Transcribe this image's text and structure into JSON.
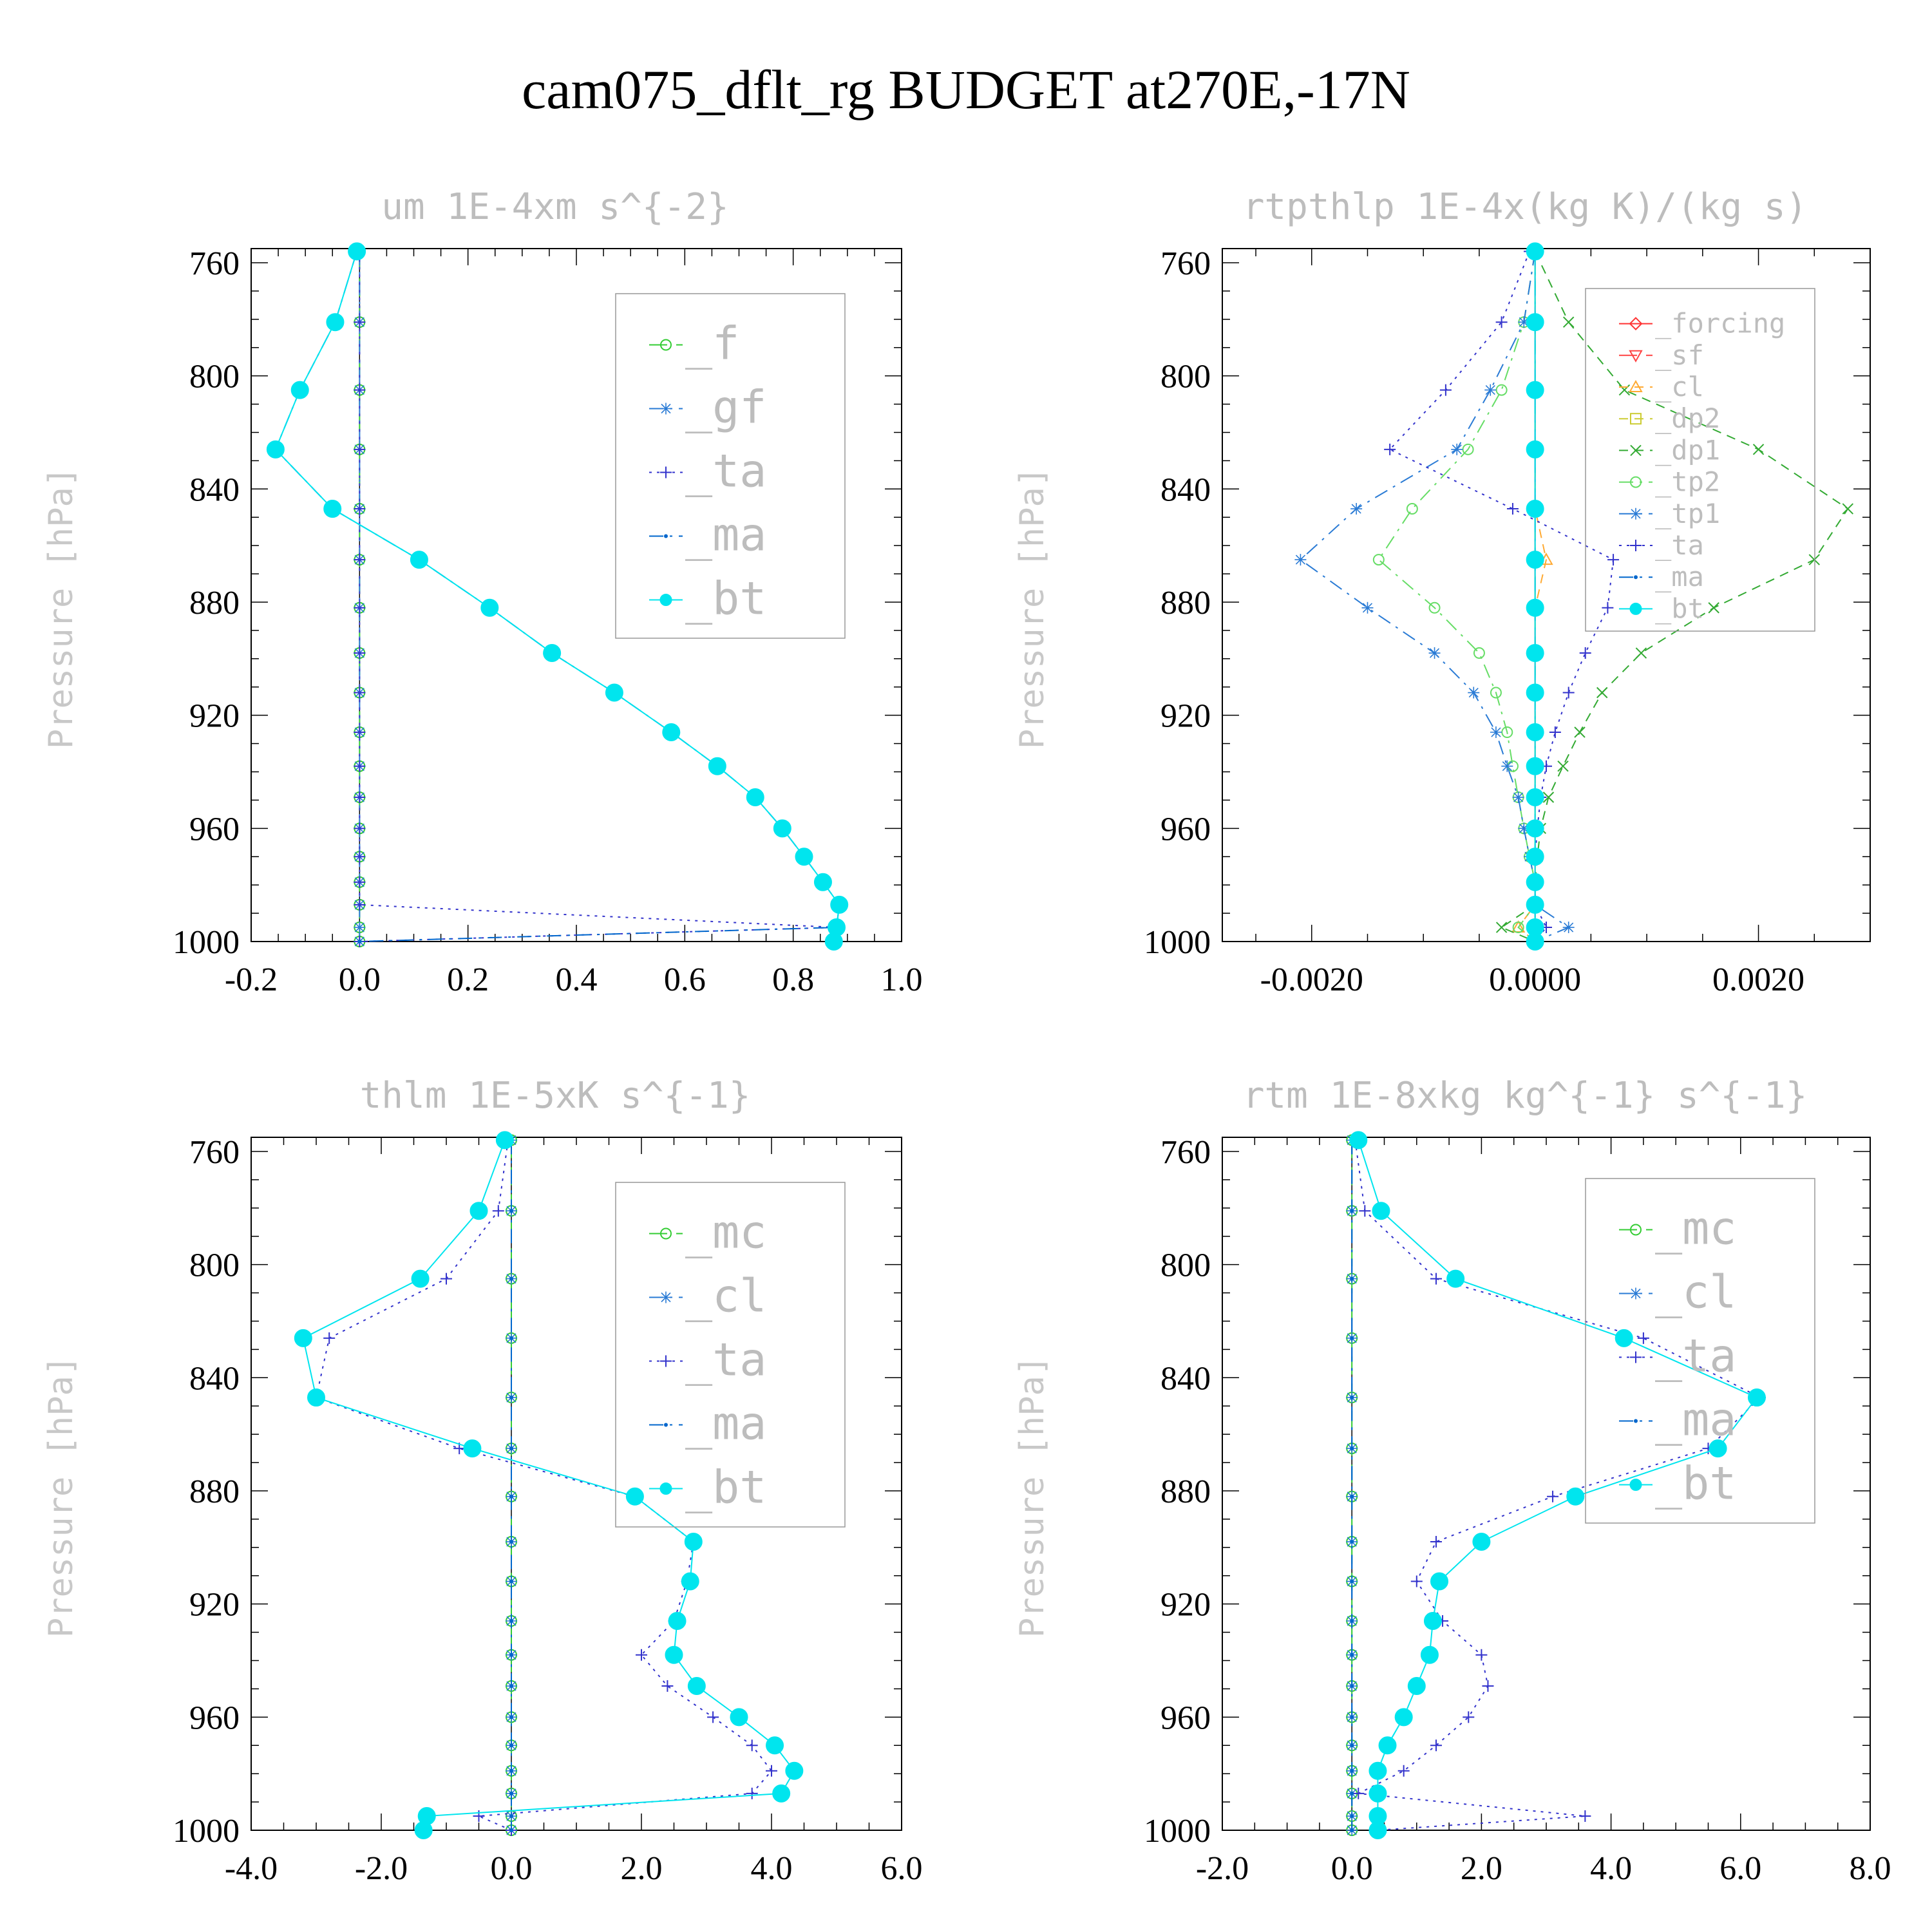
{
  "figure": {
    "title": "cam075_dflt_rg  BUDGET at270E,-17N"
  },
  "colors": {
    "f": "#33cc33",
    "gf": "#2a7bd5",
    "ta": "#3333cc",
    "ma": "#0066cc",
    "bt": "#00e5ee",
    "mc": "#33cc33",
    "cl": "#2a7bd5",
    "forcing": "#ff3333",
    "sf": "#ff4444",
    "cl_rt": "#ffaa33",
    "dp2": "#cccc33",
    "dp1": "#33aa33",
    "tp2": "#66dd66",
    "tp1": "#2a7bd5"
  },
  "chart_data": [
    {
      "type": "line",
      "title": "um   1E-4xm s^{-2}",
      "ylabel": "Pressure [hPa]",
      "ylim": [
        1000,
        755
      ],
      "y_ticks": [
        760,
        800,
        840,
        880,
        920,
        960,
        1000
      ],
      "xlim": [
        -0.2,
        1.0
      ],
      "x_ticks": [
        -0.2,
        0.0,
        0.2,
        0.4,
        0.6,
        0.8,
        1.0
      ],
      "x_tick_labels": [
        "-0.2",
        "0.0",
        "0.2",
        "0.4",
        "0.6",
        "0.8",
        "1.0"
      ],
      "legend": [
        "_f",
        "_gf",
        "_ta",
        "_ma",
        "_bt"
      ],
      "levels": [
        756,
        781,
        805,
        826,
        847,
        865,
        882,
        898,
        912,
        926,
        938,
        949,
        960,
        970,
        979,
        987,
        995,
        1000
      ],
      "series": [
        {
          "name": "_f",
          "key": "f",
          "dash": "long",
          "marker": "circle",
          "values": [
            0,
            0,
            0,
            0,
            0,
            0,
            0,
            0,
            0,
            0,
            0,
            0,
            0,
            0,
            0,
            0,
            0,
            0
          ]
        },
        {
          "name": "_gf",
          "key": "gf",
          "dash": "dashdot",
          "marker": "star",
          "values": [
            0,
            0,
            0,
            0,
            0,
            0,
            0,
            0,
            0,
            0,
            0,
            0,
            0,
            0,
            0,
            0,
            0,
            0
          ]
        },
        {
          "name": "_ta",
          "key": "ta",
          "dash": "dot",
          "marker": "plus",
          "values": [
            0,
            0,
            0,
            0,
            0,
            0,
            0,
            0,
            0,
            0,
            0,
            0,
            0,
            0,
            0,
            0,
            0.88,
            0.0
          ]
        },
        {
          "name": "_ma",
          "key": "ma",
          "dash": "dashdot",
          "marker": "dot",
          "values": [
            -0.005,
            -0.045,
            -0.11,
            -0.155,
            -0.05,
            0.11,
            0.24,
            0.355,
            0.47,
            0.575,
            0.66,
            0.73,
            0.78,
            0.82,
            0.855,
            0.885,
            0.88,
            0.0
          ]
        },
        {
          "name": "_bt",
          "key": "bt",
          "dash": "solid",
          "marker": "bigdot",
          "values": [
            -0.005,
            -0.045,
            -0.11,
            -0.155,
            -0.05,
            0.11,
            0.24,
            0.355,
            0.47,
            0.575,
            0.66,
            0.73,
            0.78,
            0.82,
            0.855,
            0.885,
            0.88,
            0.875
          ]
        }
      ]
    },
    {
      "type": "line",
      "title": "rtpthlp   1E-4x(kg K)/(kg s)",
      "ylabel": "Pressure [hPa]",
      "ylim": [
        1000,
        755
      ],
      "y_ticks": [
        760,
        800,
        840,
        880,
        920,
        960,
        1000
      ],
      "xlim": [
        -0.0028,
        0.003
      ],
      "x_ticks": [
        -0.002,
        0.0,
        0.002
      ],
      "x_tick_labels": [
        "-0.0020",
        "0.0000",
        "0.0020"
      ],
      "legend": [
        "_forcing",
        "_sf",
        "_cl",
        "_dp2",
        "_dp1",
        "_tp2",
        "_tp1",
        "_ta",
        "_ma",
        "_bt"
      ],
      "levels": [
        756,
        781,
        805,
        826,
        847,
        865,
        882,
        898,
        912,
        926,
        938,
        949,
        960,
        970,
        979,
        987,
        995,
        1000
      ],
      "series": [
        {
          "name": "_forcing",
          "key": "forcing",
          "dash": "solid",
          "marker": "diamond",
          "values": [
            0,
            0,
            0,
            0,
            0,
            0,
            0,
            0,
            0,
            0,
            0,
            0,
            0,
            0,
            0,
            0,
            0,
            0
          ]
        },
        {
          "name": "_sf",
          "key": "sf",
          "dash": "long",
          "marker": "tridown",
          "values": [
            0,
            0,
            0,
            0,
            0,
            0,
            0,
            0,
            0,
            0,
            0,
            0,
            0,
            0,
            0,
            0,
            0,
            0
          ]
        },
        {
          "name": "_cl",
          "key": "cl_rt",
          "dash": "dash",
          "marker": "triup",
          "values": [
            0,
            0,
            0,
            0,
            0,
            0.0001,
            0,
            0,
            0,
            0,
            0,
            0,
            0,
            0,
            0,
            0,
            -0.00015,
            0
          ]
        },
        {
          "name": "_dp2",
          "key": "dp2",
          "dash": "dash",
          "marker": "square",
          "values": [
            0,
            0,
            0,
            0,
            0,
            0,
            0,
            0,
            0,
            0,
            0,
            0,
            0,
            0,
            0,
            0,
            0,
            0
          ]
        },
        {
          "name": "_dp1",
          "key": "dp1",
          "dash": "dash",
          "marker": "cross",
          "values": [
            0,
            0.0003,
            0.0008,
            0.002,
            0.0028,
            0.0025,
            0.0016,
            0.00095,
            0.0006,
            0.0004,
            0.00025,
            0.00012,
            5e-05,
            2e-05,
            0,
            0,
            -0.0003,
            0
          ]
        },
        {
          "name": "_tp2",
          "key": "tp2",
          "dash": "dashdot",
          "marker": "circle",
          "values": [
            0,
            -0.0001,
            -0.0003,
            -0.0006,
            -0.0011,
            -0.0014,
            -0.0009,
            -0.0005,
            -0.00035,
            -0.00025,
            -0.0002,
            -0.00015,
            -0.0001,
            -5e-05,
            0,
            0,
            -0.00015,
            0
          ]
        },
        {
          "name": "_tp1",
          "key": "tp1",
          "dash": "dashdot",
          "marker": "star",
          "values": [
            0,
            -0.0001,
            -0.0004,
            -0.0007,
            -0.0016,
            -0.0021,
            -0.0015,
            -0.0009,
            -0.00055,
            -0.00035,
            -0.00025,
            -0.00015,
            -0.0001,
            -5e-05,
            0,
            0,
            0.0003,
            0
          ]
        },
        {
          "name": "_ta",
          "key": "ta",
          "dash": "dot",
          "marker": "plus",
          "values": [
            -5e-05,
            -0.0003,
            -0.0008,
            -0.0013,
            -0.0002,
            0.0007,
            0.00065,
            0.00045,
            0.0003,
            0.00018,
            0.0001,
            5e-05,
            2e-05,
            0,
            0,
            0,
            0.0001,
            0
          ]
        },
        {
          "name": "_ma",
          "key": "ma",
          "dash": "dashdot",
          "marker": "dot",
          "values": [
            0,
            0,
            0,
            0,
            0,
            0,
            0,
            0,
            0,
            0,
            0,
            0,
            0,
            0,
            0,
            0,
            0,
            0
          ]
        },
        {
          "name": "_bt",
          "key": "bt",
          "dash": "solid",
          "marker": "bigdot",
          "values": [
            0,
            0,
            0,
            0,
            0,
            0,
            0,
            0,
            0,
            0,
            0,
            0,
            0,
            0,
            0,
            0,
            0,
            0
          ]
        }
      ]
    },
    {
      "type": "line",
      "title": "thlm   1E-5xK s^{-1}",
      "ylabel": "Pressure [hPa]",
      "ylim": [
        1000,
        755
      ],
      "y_ticks": [
        760,
        800,
        840,
        880,
        920,
        960,
        1000
      ],
      "xlim": [
        -4.0,
        6.0
      ],
      "x_ticks": [
        -4,
        -2,
        0,
        2,
        4,
        6
      ],
      "x_tick_labels": [
        "-4.0",
        "-2.0",
        "0.0",
        "2.0",
        "4.0",
        "6.0"
      ],
      "legend": [
        "_mc",
        "_cl",
        "_ta",
        "_ma",
        "_bt"
      ],
      "levels": [
        756,
        781,
        805,
        826,
        847,
        865,
        882,
        898,
        912,
        926,
        938,
        949,
        960,
        970,
        979,
        987,
        995,
        1000
      ],
      "series": [
        {
          "name": "_mc",
          "key": "mc",
          "dash": "long",
          "marker": "circle",
          "values": [
            0,
            0,
            0,
            0,
            0,
            0,
            0,
            0,
            0,
            0,
            0,
            0,
            0,
            0,
            0,
            0,
            0,
            0
          ]
        },
        {
          "name": "_cl",
          "key": "cl",
          "dash": "dashdot",
          "marker": "star",
          "values": [
            0,
            0,
            0,
            0,
            0,
            0,
            0,
            0,
            0,
            0,
            0,
            0,
            0,
            0,
            0,
            0,
            0,
            0
          ]
        },
        {
          "name": "_ta",
          "key": "ta",
          "dash": "dot",
          "marker": "plus",
          "values": [
            -0.05,
            -0.2,
            -1.0,
            -2.8,
            -3.0,
            -0.8,
            1.9,
            2.8,
            2.7,
            2.5,
            2.0,
            2.4,
            3.1,
            3.7,
            4.0,
            3.7,
            -0.5,
            0
          ]
        },
        {
          "name": "_ma",
          "key": "ma",
          "dash": "dashdot",
          "marker": "dot",
          "values": [
            0,
            0,
            0,
            0,
            0,
            0,
            0,
            0,
            0,
            0,
            0,
            0,
            0,
            0,
            0,
            0,
            0,
            0
          ]
        },
        {
          "name": "_bt",
          "key": "bt",
          "dash": "solid",
          "marker": "bigdot",
          "values": [
            -0.1,
            -0.5,
            -1.4,
            -3.2,
            -3.0,
            -0.6,
            1.9,
            2.8,
            2.75,
            2.55,
            2.5,
            2.85,
            3.5,
            4.05,
            4.35,
            4.15,
            -1.3,
            -1.35
          ]
        }
      ]
    },
    {
      "type": "line",
      "title": "rtm   1E-8xkg kg^{-1} s^{-1}",
      "ylabel": "Pressure [hPa]",
      "ylim": [
        1000,
        755
      ],
      "y_ticks": [
        760,
        800,
        840,
        880,
        920,
        960,
        1000
      ],
      "xlim": [
        -2.0,
        8.0
      ],
      "x_ticks": [
        -2,
        0,
        2,
        4,
        6,
        8
      ],
      "x_tick_labels": [
        "-2.0",
        "0.0",
        "2.0",
        "4.0",
        "6.0",
        "8.0"
      ],
      "legend": [
        "_mc",
        "_cl",
        "_ta",
        "_ma",
        "_bt"
      ],
      "levels": [
        756,
        781,
        805,
        826,
        847,
        865,
        882,
        898,
        912,
        926,
        938,
        949,
        960,
        970,
        979,
        987,
        995,
        1000
      ],
      "series": [
        {
          "name": "_mc",
          "key": "mc",
          "dash": "long",
          "marker": "circle",
          "values": [
            0,
            0,
            0,
            0,
            0,
            0,
            0,
            0,
            0,
            0,
            0,
            0,
            0,
            0,
            0,
            0,
            0,
            0
          ]
        },
        {
          "name": "_cl",
          "key": "cl",
          "dash": "dashdot",
          "marker": "star",
          "values": [
            0,
            0,
            0,
            0,
            0,
            0,
            0,
            0,
            0,
            0,
            0,
            0,
            0,
            0,
            0,
            0,
            0,
            0
          ]
        },
        {
          "name": "_ta",
          "key": "ta",
          "dash": "dot",
          "marker": "plus",
          "values": [
            0.05,
            0.2,
            1.3,
            4.5,
            6.3,
            5.5,
            3.1,
            1.3,
            1.0,
            1.4,
            2.0,
            2.1,
            1.8,
            1.3,
            0.8,
            0.1,
            3.6,
            0.4
          ]
        },
        {
          "name": "_ma",
          "key": "ma",
          "dash": "dashdot",
          "marker": "dot",
          "values": [
            0,
            0,
            0,
            0,
            0,
            0,
            0,
            0,
            0,
            0,
            0,
            0,
            0,
            0,
            0,
            0,
            0,
            0
          ]
        },
        {
          "name": "_bt",
          "key": "bt",
          "dash": "solid",
          "marker": "bigdot",
          "values": [
            0.1,
            0.45,
            1.6,
            4.2,
            6.25,
            5.65,
            3.45,
            2.0,
            1.35,
            1.25,
            1.2,
            1.0,
            0.8,
            0.55,
            0.4,
            0.4,
            0.4,
            0.4
          ]
        }
      ]
    }
  ]
}
